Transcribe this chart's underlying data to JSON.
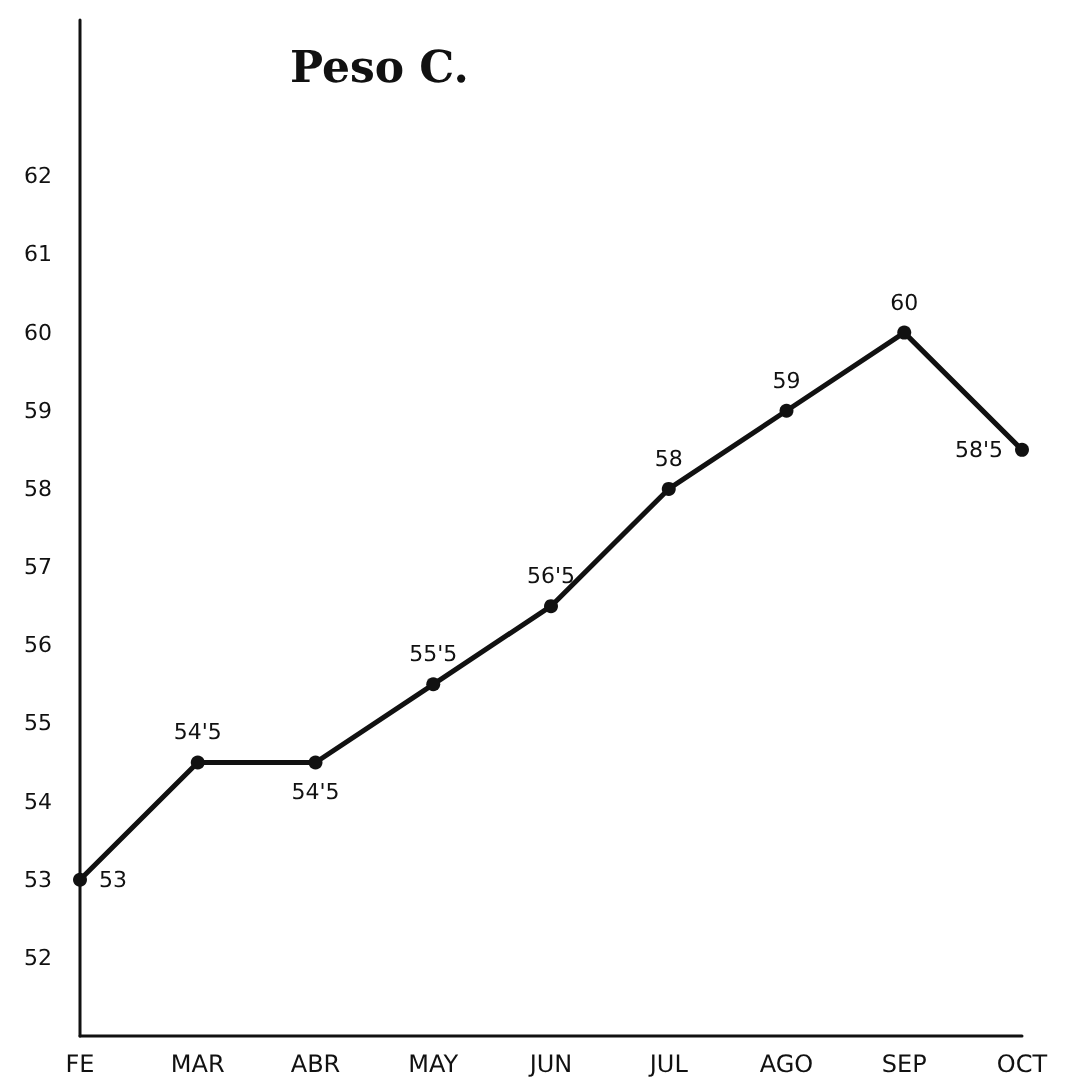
{
  "chart_data": {
    "type": "line",
    "title": "Peso C.",
    "categories": [
      "FE",
      "MAR",
      "ABR",
      "MAY",
      "JUN",
      "JUL",
      "AGO",
      "SEP",
      "OCT"
    ],
    "series": [
      {
        "color": "#111111",
        "values": [
          53,
          54.5,
          54.5,
          55.5,
          56.5,
          58,
          59,
          60,
          58.5
        ],
        "value_labels": [
          "53",
          "54'5",
          "54'5",
          "55'5",
          "56'5",
          "58",
          "59",
          "60",
          "58'5"
        ]
      }
    ],
    "ylim": [
      51,
      64
    ],
    "yticks": [
      52,
      53,
      54,
      55,
      56,
      57,
      58,
      59,
      60,
      61,
      62
    ],
    "marker": "circle",
    "line_style": "solid"
  }
}
